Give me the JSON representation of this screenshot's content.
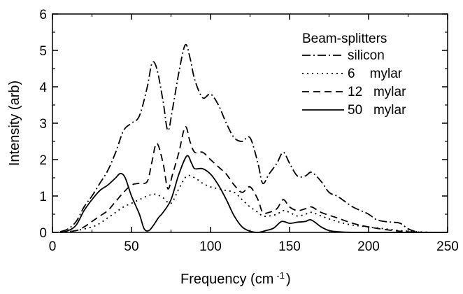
{
  "chart_data": {
    "type": "line",
    "title": "",
    "xlabel": "Frequency (cm",
    "xlabel_superscript": "-1",
    "xlabel_close": ")",
    "ylabel": "Intensity (arb)",
    "xlim": [
      0,
      250
    ],
    "ylim": [
      0,
      6
    ],
    "xticks": [
      0,
      50,
      100,
      150,
      200,
      250
    ],
    "yticks": [
      0,
      1,
      2,
      3,
      4,
      5,
      6
    ],
    "grid": false,
    "legend": {
      "title": "Beam-splitters",
      "placement": "top-right"
    },
    "series": [
      {
        "name": "silicon",
        "dash": "dash-dot",
        "x": [
          5,
          10,
          15,
          20,
          25,
          30,
          35,
          40,
          45,
          50,
          55,
          60,
          63,
          66,
          70,
          73,
          76,
          80,
          84,
          87,
          90,
          95,
          100,
          105,
          110,
          115,
          120,
          125,
          130,
          133,
          137,
          142,
          146,
          150,
          155,
          160,
          164,
          170,
          175,
          180,
          185,
          190,
          195,
          200,
          205,
          210,
          215,
          220,
          225,
          230,
          235
        ],
        "y": [
          0.02,
          0.1,
          0.3,
          0.7,
          1.0,
          1.35,
          1.7,
          2.2,
          2.8,
          3.0,
          3.2,
          4.0,
          4.65,
          4.5,
          3.6,
          2.8,
          3.4,
          4.4,
          5.15,
          4.8,
          4.2,
          3.7,
          3.8,
          3.5,
          3.0,
          2.6,
          2.5,
          2.6,
          1.9,
          1.35,
          1.6,
          1.9,
          2.2,
          1.9,
          1.55,
          1.55,
          1.65,
          1.4,
          1.1,
          1.0,
          0.85,
          0.7,
          0.6,
          0.5,
          0.35,
          0.3,
          0.28,
          0.25,
          0.1,
          0.02,
          0.0
        ]
      },
      {
        "name": "6    mylar",
        "dash": "dotted",
        "x": [
          5,
          15,
          25,
          30,
          35,
          40,
          45,
          50,
          55,
          60,
          65,
          70,
          75,
          80,
          85,
          90,
          95,
          100,
          105,
          110,
          115,
          120,
          125,
          130,
          133,
          137,
          142,
          146,
          150,
          155,
          160,
          164,
          170,
          180,
          190,
          200,
          210,
          220,
          230,
          240
        ],
        "y": [
          0.0,
          0.05,
          0.15,
          0.25,
          0.4,
          0.55,
          0.7,
          0.8,
          0.9,
          1.0,
          1.05,
          0.95,
          0.8,
          1.2,
          1.55,
          1.5,
          1.35,
          1.25,
          1.2,
          1.15,
          1.1,
          0.9,
          0.7,
          0.55,
          0.45,
          0.45,
          0.5,
          0.6,
          0.55,
          0.45,
          0.5,
          0.55,
          0.45,
          0.3,
          0.2,
          0.15,
          0.1,
          0.05,
          0.02,
          0.0
        ]
      },
      {
        "name": "12   mylar",
        "dash": "dashed",
        "x": [
          5,
          15,
          20,
          25,
          30,
          35,
          40,
          45,
          50,
          55,
          60,
          63,
          66,
          70,
          73,
          76,
          80,
          84,
          87,
          90,
          95,
          100,
          105,
          110,
          115,
          120,
          125,
          130,
          133,
          137,
          142,
          146,
          150,
          155,
          160,
          164,
          170,
          180,
          190,
          200,
          210,
          220,
          230
        ],
        "y": [
          0.0,
          0.05,
          0.15,
          0.3,
          0.45,
          0.6,
          0.85,
          1.1,
          1.3,
          1.35,
          1.4,
          1.95,
          2.45,
          1.9,
          1.2,
          1.6,
          2.2,
          2.9,
          2.5,
          2.2,
          2.2,
          2.0,
          1.8,
          1.6,
          1.3,
          1.1,
          1.25,
          0.9,
          0.55,
          0.55,
          0.65,
          0.9,
          0.7,
          0.6,
          0.65,
          0.7,
          0.55,
          0.4,
          0.25,
          0.15,
          0.08,
          0.03,
          0.0
        ]
      },
      {
        "name": "50   mylar",
        "dash": "solid",
        "x": [
          5,
          10,
          15,
          20,
          25,
          30,
          35,
          40,
          43,
          46,
          50,
          55,
          58,
          61,
          64,
          67,
          70,
          75,
          80,
          85,
          88,
          90,
          95,
          100,
          105,
          110,
          115,
          120,
          125,
          130,
          135,
          140,
          145,
          150,
          155,
          160,
          163,
          166,
          170,
          175,
          180,
          190,
          200,
          210,
          220,
          230,
          240,
          250
        ],
        "y": [
          0.0,
          0.05,
          0.2,
          0.6,
          0.9,
          1.15,
          1.3,
          1.5,
          1.62,
          1.5,
          1.0,
          0.5,
          0.1,
          0.05,
          0.2,
          0.4,
          0.55,
          0.9,
          1.6,
          2.1,
          1.9,
          1.75,
          1.75,
          1.6,
          1.3,
          0.9,
          0.45,
          0.15,
          0.03,
          0.0,
          0.05,
          0.12,
          0.3,
          0.25,
          0.28,
          0.3,
          0.35,
          0.28,
          0.15,
          0.05,
          0.02,
          0.0,
          0.0,
          0.0,
          0.0,
          0.0,
          0.0,
          0.0
        ]
      }
    ]
  }
}
